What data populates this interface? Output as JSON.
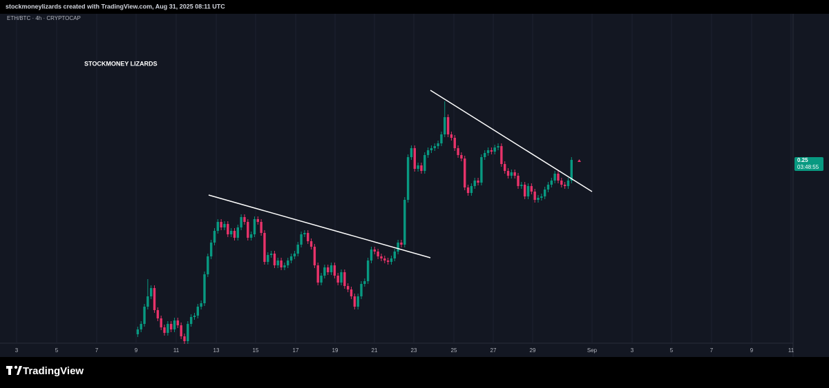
{
  "header": {
    "text": "stockmoneylizards created with TradingView.com, Aug 31, 2025 08:11 UTC"
  },
  "chart_data": {
    "type": "candlestick",
    "symbol": "ETH/BTC · 4h · CRYPTOCAP",
    "annotation": "STOCKMONEY LIZARDS",
    "colors": {
      "up": "#089981",
      "down": "#e8336a"
    },
    "ylim": [
      0.193,
      0.2926
    ],
    "x_labels": [
      "3",
      "5",
      "7",
      "9",
      "11",
      "13",
      "15",
      "17",
      "19",
      "21",
      "23",
      "25",
      "27",
      "29",
      "Sep",
      "3",
      "5",
      "7",
      "9",
      "11"
    ],
    "open": [
      0.1996,
      0.201,
      0.2026,
      0.2076,
      0.2106,
      0.213,
      0.2066,
      0.2042,
      0.2016,
      0.2,
      0.2026,
      0.201,
      0.2036,
      0.2022,
      0.199,
      0.1976,
      0.2026,
      0.2046,
      0.205,
      0.2076,
      0.2086,
      0.217,
      0.2222,
      0.2262,
      0.2296,
      0.2322,
      0.2306,
      0.2316,
      0.2286,
      0.2296,
      0.2276,
      0.2306,
      0.2336,
      0.2322,
      0.2276,
      0.2286,
      0.233,
      0.2322,
      0.229,
      0.2206,
      0.2226,
      0.223,
      0.2196,
      0.221,
      0.219,
      0.2196,
      0.221,
      0.2222,
      0.223,
      0.2256,
      0.2286,
      0.229,
      0.2266,
      0.225,
      0.2196,
      0.2146,
      0.2166,
      0.219,
      0.2176,
      0.2196,
      0.2166,
      0.2146,
      0.2176,
      0.2136,
      0.2126,
      0.2106,
      0.2076,
      0.2106,
      0.2142,
      0.215,
      0.221,
      0.2242,
      0.2236,
      0.2222,
      0.2216,
      0.221,
      0.2206,
      0.2216,
      0.2236,
      0.2262,
      0.2256,
      0.2386,
      0.251,
      0.2536,
      0.2476,
      0.2486,
      0.247,
      0.2516,
      0.253,
      0.2536,
      0.2542,
      0.255,
      0.2576,
      0.2626,
      0.2576,
      0.2566,
      0.2536,
      0.2516,
      0.2506,
      0.2422,
      0.2406,
      0.2426,
      0.2442,
      0.2436,
      0.251,
      0.2522,
      0.253,
      0.2526,
      0.2538,
      0.2542,
      0.249,
      0.247,
      0.2456,
      0.2466,
      0.2456,
      0.2426,
      0.243,
      0.2396,
      0.2426,
      0.241,
      0.2386,
      0.2392,
      0.2396,
      0.2416,
      0.243,
      0.2442,
      0.2462,
      0.2442,
      0.243,
      0.2426,
      0.2442
    ],
    "high": [
      0.2018,
      0.2034,
      0.2084,
      0.2156,
      0.2138,
      0.2138,
      0.2074,
      0.205,
      0.2024,
      0.2034,
      0.2034,
      0.2044,
      0.2044,
      0.203,
      0.1998,
      0.2034,
      0.2054,
      0.2058,
      0.2084,
      0.2094,
      0.2178,
      0.223,
      0.227,
      0.2304,
      0.233,
      0.233,
      0.2324,
      0.2324,
      0.2304,
      0.2304,
      0.2314,
      0.2344,
      0.2344,
      0.233,
      0.2294,
      0.2338,
      0.2338,
      0.233,
      0.2298,
      0.2234,
      0.2238,
      0.2238,
      0.2218,
      0.2218,
      0.2204,
      0.2218,
      0.223,
      0.2238,
      0.2264,
      0.2294,
      0.2298,
      0.2298,
      0.2274,
      0.2258,
      0.2204,
      0.2174,
      0.2198,
      0.2198,
      0.2204,
      0.2204,
      0.2174,
      0.2184,
      0.2184,
      0.2144,
      0.2134,
      0.2114,
      0.2114,
      0.215,
      0.2158,
      0.2218,
      0.225,
      0.225,
      0.2244,
      0.223,
      0.2224,
      0.2218,
      0.2224,
      0.2244,
      0.227,
      0.227,
      0.2394,
      0.2518,
      0.2544,
      0.2544,
      0.2494,
      0.2494,
      0.2524,
      0.2538,
      0.2544,
      0.255,
      0.2558,
      0.2584,
      0.2672,
      0.2634,
      0.2584,
      0.2574,
      0.2544,
      0.2524,
      0.2514,
      0.243,
      0.2434,
      0.245,
      0.245,
      0.2518,
      0.253,
      0.2538,
      0.2538,
      0.2546,
      0.255,
      0.255,
      0.2498,
      0.2478,
      0.2474,
      0.2474,
      0.2464,
      0.2438,
      0.2438,
      0.2434,
      0.2434,
      0.2418,
      0.24,
      0.2404,
      0.2424,
      0.2438,
      0.245,
      0.247,
      0.247,
      0.245,
      0.2438,
      0.245,
      0.251
    ],
    "low": [
      0.1988,
      0.2002,
      0.2018,
      0.2068,
      0.2098,
      0.2058,
      0.2034,
      0.2008,
      0.1992,
      0.1992,
      0.2002,
      0.2002,
      0.2014,
      0.1982,
      0.1968,
      0.1968,
      0.2018,
      0.2038,
      0.2042,
      0.2068,
      0.2078,
      0.2162,
      0.2214,
      0.2254,
      0.2288,
      0.2298,
      0.2298,
      0.2278,
      0.2278,
      0.2268,
      0.2268,
      0.2298,
      0.2314,
      0.2268,
      0.2268,
      0.2278,
      0.2314,
      0.2282,
      0.2198,
      0.2198,
      0.2218,
      0.2188,
      0.2188,
      0.2182,
      0.2182,
      0.2188,
      0.2202,
      0.2214,
      0.2222,
      0.2248,
      0.2278,
      0.2258,
      0.2242,
      0.2188,
      0.2138,
      0.2138,
      0.2158,
      0.2168,
      0.2168,
      0.2158,
      0.2138,
      0.2138,
      0.2128,
      0.2118,
      0.2098,
      0.2068,
      0.2068,
      0.2098,
      0.2134,
      0.2142,
      0.2202,
      0.2228,
      0.2214,
      0.2208,
      0.2202,
      0.2198,
      0.2198,
      0.2208,
      0.2228,
      0.2248,
      0.2248,
      0.2378,
      0.2502,
      0.2468,
      0.2468,
      0.2462,
      0.2462,
      0.2508,
      0.2522,
      0.2528,
      0.2534,
      0.2542,
      0.2568,
      0.2568,
      0.2558,
      0.2528,
      0.2508,
      0.2498,
      0.2414,
      0.2398,
      0.2398,
      0.2418,
      0.2428,
      0.2428,
      0.2502,
      0.2514,
      0.2518,
      0.2518,
      0.253,
      0.2482,
      0.2462,
      0.2448,
      0.2448,
      0.2448,
      0.2418,
      0.2418,
      0.2388,
      0.2388,
      0.2402,
      0.2378,
      0.2378,
      0.2384,
      0.2388,
      0.2408,
      0.2422,
      0.2434,
      0.2434,
      0.2422,
      0.2418,
      0.2418,
      0.2434
    ],
    "close": [
      0.201,
      0.2026,
      0.2076,
      0.2106,
      0.213,
      0.2066,
      0.2042,
      0.2016,
      0.2,
      0.2026,
      0.201,
      0.2036,
      0.2022,
      0.199,
      0.1976,
      0.2026,
      0.2046,
      0.205,
      0.2076,
      0.2086,
      0.217,
      0.2222,
      0.2262,
      0.2296,
      0.2322,
      0.2306,
      0.2316,
      0.2286,
      0.2296,
      0.2276,
      0.2306,
      0.2336,
      0.2322,
      0.2276,
      0.2286,
      0.233,
      0.2322,
      0.229,
      0.2206,
      0.2226,
      0.223,
      0.2196,
      0.221,
      0.219,
      0.2196,
      0.221,
      0.2222,
      0.223,
      0.2256,
      0.2286,
      0.229,
      0.2266,
      0.225,
      0.2196,
      0.2146,
      0.2166,
      0.219,
      0.2176,
      0.2196,
      0.2166,
      0.2146,
      0.2176,
      0.2136,
      0.2126,
      0.2106,
      0.2076,
      0.2106,
      0.2142,
      0.215,
      0.221,
      0.2242,
      0.2236,
      0.2222,
      0.2216,
      0.221,
      0.2206,
      0.2216,
      0.2236,
      0.2262,
      0.2256,
      0.2386,
      0.251,
      0.2536,
      0.2476,
      0.2486,
      0.247,
      0.2516,
      0.253,
      0.2536,
      0.2542,
      0.255,
      0.2576,
      0.2626,
      0.2576,
      0.2566,
      0.2536,
      0.2516,
      0.2506,
      0.2422,
      0.2406,
      0.2426,
      0.2442,
      0.2436,
      0.251,
      0.2522,
      0.253,
      0.2526,
      0.2538,
      0.2542,
      0.249,
      0.247,
      0.2456,
      0.2466,
      0.2456,
      0.2426,
      0.243,
      0.2396,
      0.2426,
      0.241,
      0.2386,
      0.2392,
      0.2396,
      0.2416,
      0.243,
      0.2442,
      0.2462,
      0.2442,
      0.243,
      0.2426,
      0.2442,
      0.2502
    ],
    "last_price": 0.25,
    "countdown": "03:48:55"
  },
  "footer": {
    "brand": "TradingView"
  }
}
